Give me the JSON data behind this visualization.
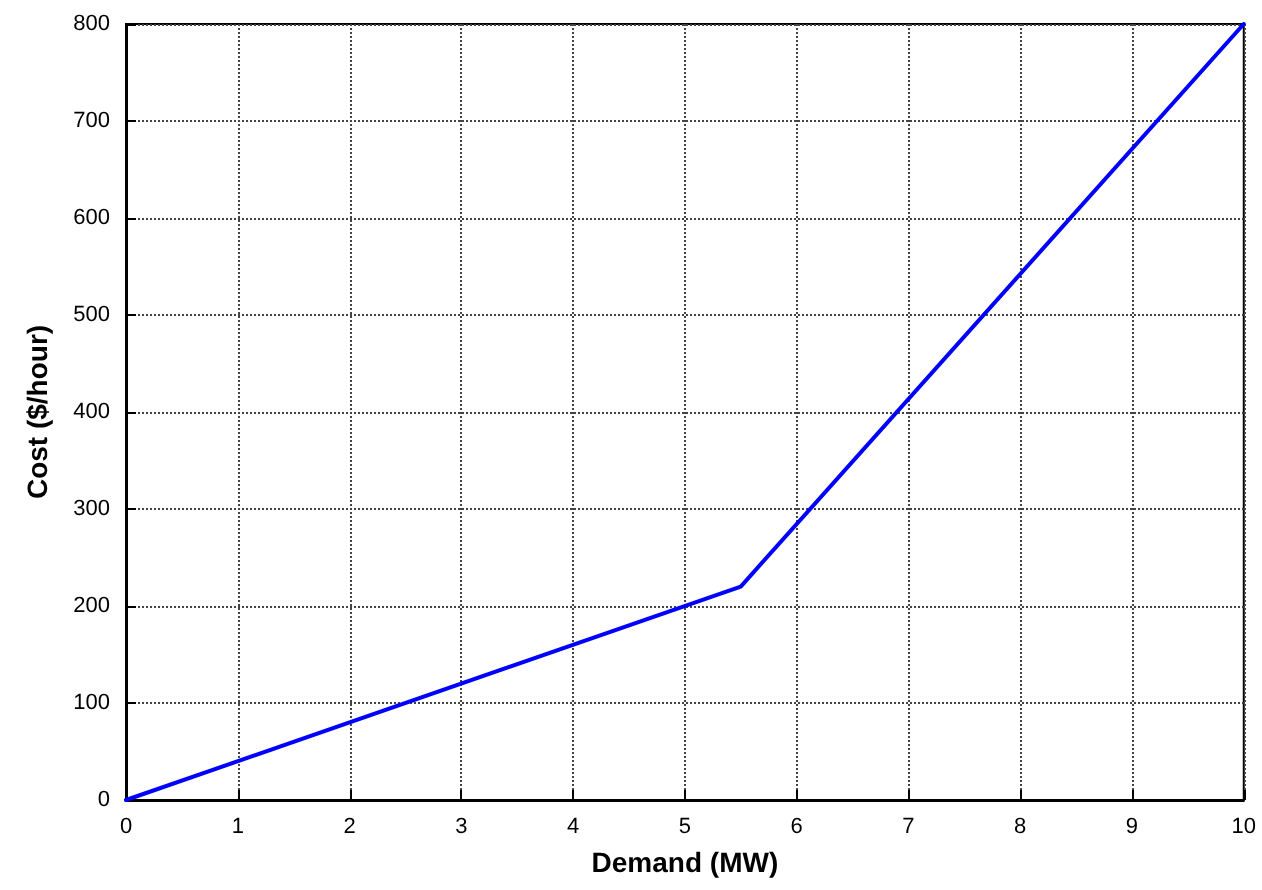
{
  "chart_data": {
    "type": "line",
    "xlabel": "Demand (MW)",
    "ylabel": "Cost ($/hour)",
    "series": [
      {
        "color": "#0000ff",
        "x": [
          0,
          5.5,
          10
        ],
        "values": [
          0,
          220,
          800
        ]
      }
    ],
    "xlim": [
      0,
      10
    ],
    "xticks": [
      0,
      1,
      2,
      3,
      4,
      5,
      6,
      7,
      8,
      9,
      10
    ],
    "ylim": [
      0,
      800
    ],
    "yticks": [
      0,
      100,
      200,
      300,
      400,
      500,
      600,
      700,
      800
    ],
    "grid": true,
    "marker": "none",
    "line_style": "solid"
  }
}
